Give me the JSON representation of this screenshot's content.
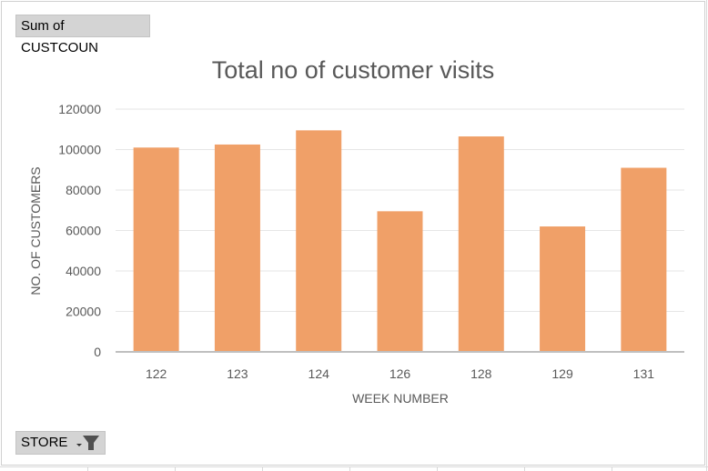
{
  "field_buttons": {
    "value_field": "Sum of CUSTCOUN",
    "axis_field": "STORE"
  },
  "icons": {
    "filter": "filter-dropdown-icon"
  },
  "colors": {
    "bar": "#F0A068",
    "gridline": "#e6e6e6",
    "axis": "#bfbfbf",
    "text": "#595959"
  },
  "chart_data": {
    "type": "bar",
    "title": "Total no of customer visits",
    "xlabel": "WEEK NUMBER",
    "ylabel": "NO. OF CUSTOMERS",
    "categories": [
      "122",
      "123",
      "124",
      "126",
      "128",
      "129",
      "131"
    ],
    "series": [
      {
        "values": [
          101000,
          102500,
          109500,
          69500,
          106500,
          62000,
          91000
        ]
      }
    ],
    "ylim": [
      0,
      120000
    ],
    "yticks": [
      0,
      20000,
      40000,
      60000,
      80000,
      100000,
      120000
    ],
    "grid": "horizontal",
    "legend": "none"
  }
}
